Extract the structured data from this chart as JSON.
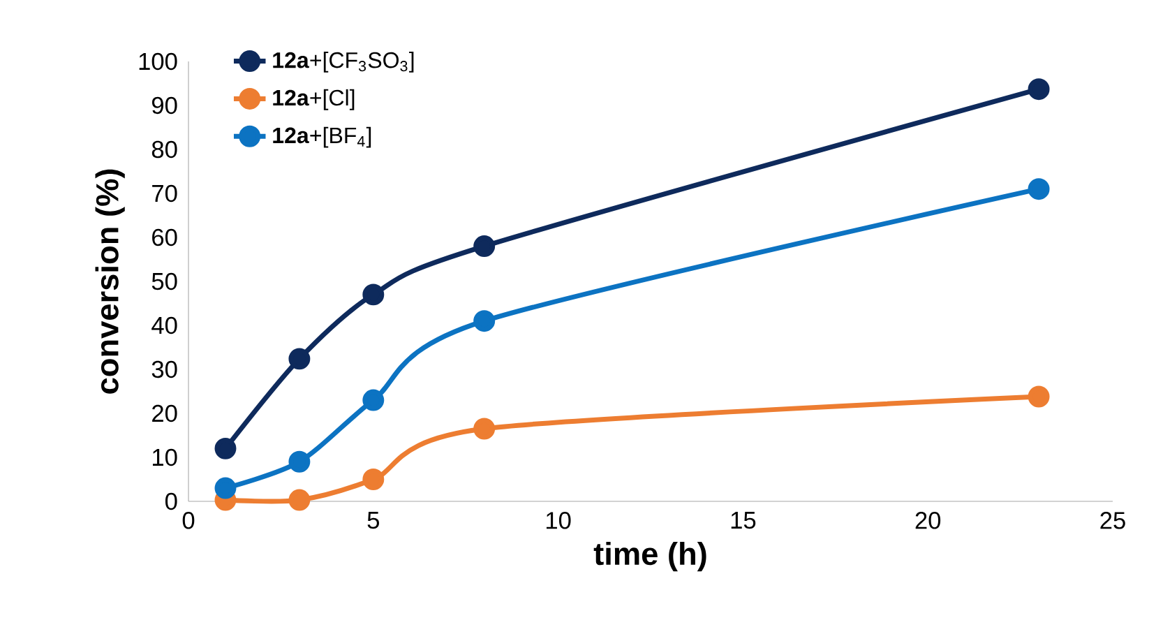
{
  "chart_data": {
    "type": "line",
    "xlabel": "time (h)",
    "ylabel": "conversion (%)",
    "x": [
      1,
      3,
      5,
      8,
      23
    ],
    "series": [
      {
        "name": "**12a**+[CF$_{3}$SO$_{3}$]",
        "color": "#0e2a5c",
        "values": [
          12,
          32.4,
          47,
          58,
          93.7
        ]
      },
      {
        "name": "**12a**+[Cl]",
        "color": "#ed7d31",
        "values": [
          0.3,
          0.3,
          5,
          16.5,
          23.8
        ]
      },
      {
        "name": "**12a**+[BF$_{4}$]",
        "color": "#0c73c2",
        "values": [
          3,
          9,
          23,
          41,
          71
        ]
      }
    ],
    "xlim": [
      0,
      25
    ],
    "xticks": [
      0,
      5,
      10,
      15,
      20,
      25
    ],
    "ylim": [
      0,
      100
    ],
    "yticks": [
      0,
      10,
      20,
      30,
      40,
      50,
      60,
      70,
      80,
      90,
      100
    ],
    "marker": "circle",
    "line_style": "solid",
    "legend": "top left",
    "grid": false
  }
}
